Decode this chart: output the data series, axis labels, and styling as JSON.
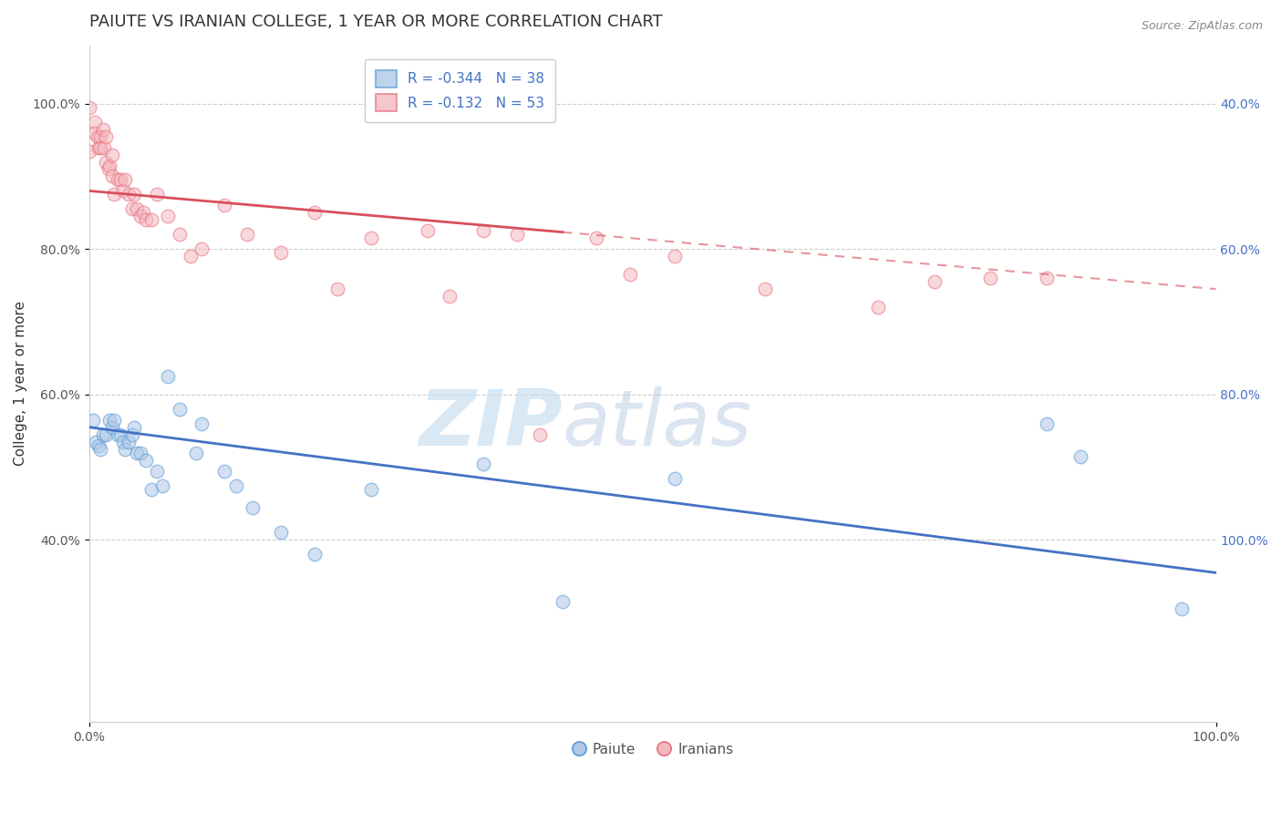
{
  "title": "PAIUTE VS IRANIAN COLLEGE, 1 YEAR OR MORE CORRELATION CHART",
  "source_text": "Source: ZipAtlas.com",
  "xlabel": "",
  "ylabel": "College, 1 year or more",
  "xlim": [
    0.0,
    1.0
  ],
  "ylim": [
    0.15,
    1.08
  ],
  "ytick_labels": [
    "40.0%",
    "60.0%",
    "80.0%",
    "100.0%"
  ],
  "ytick_values": [
    0.4,
    0.6,
    0.8,
    1.0
  ],
  "ytick_right_labels": [
    "100.0%",
    "80.0%",
    "60.0%",
    "40.0%"
  ],
  "xtick_labels": [
    "0.0%",
    "100.0%"
  ],
  "xtick_values": [
    0.0,
    1.0
  ],
  "legend_r_blue": "R = -0.344",
  "legend_n_blue": "N = 38",
  "legend_r_pink": "R = -0.132",
  "legend_n_pink": "N = 53",
  "legend_label_blue": "Paiute",
  "legend_label_pink": "Iranians",
  "blue_color": "#aec8e8",
  "pink_color": "#f4b8c1",
  "blue_edge_color": "#5b9bd5",
  "pink_edge_color": "#e8707a",
  "blue_line_color": "#4472c4",
  "pink_line_color": "#d94f5c",
  "watermark_zip": "ZIP",
  "watermark_atlas": "atlas",
  "blue_x": [
    0.003,
    0.006,
    0.008,
    0.01,
    0.012,
    0.015,
    0.018,
    0.02,
    0.022,
    0.025,
    0.028,
    0.03,
    0.032,
    0.035,
    0.038,
    0.04,
    0.042,
    0.045,
    0.05,
    0.055,
    0.06,
    0.065,
    0.07,
    0.08,
    0.095,
    0.1,
    0.12,
    0.13,
    0.145,
    0.17,
    0.2,
    0.25,
    0.35,
    0.42,
    0.52,
    0.85,
    0.88,
    0.97
  ],
  "blue_y": [
    0.565,
    0.535,
    0.53,
    0.525,
    0.545,
    0.545,
    0.565,
    0.555,
    0.565,
    0.545,
    0.545,
    0.535,
    0.525,
    0.535,
    0.545,
    0.555,
    0.52,
    0.52,
    0.51,
    0.47,
    0.495,
    0.475,
    0.625,
    0.58,
    0.52,
    0.56,
    0.495,
    0.475,
    0.445,
    0.41,
    0.38,
    0.47,
    0.505,
    0.315,
    0.485,
    0.56,
    0.515,
    0.305
  ],
  "pink_x": [
    0.0,
    0.0,
    0.005,
    0.005,
    0.007,
    0.008,
    0.01,
    0.01,
    0.012,
    0.013,
    0.015,
    0.015,
    0.017,
    0.018,
    0.02,
    0.02,
    0.022,
    0.025,
    0.028,
    0.03,
    0.032,
    0.035,
    0.038,
    0.04,
    0.042,
    0.045,
    0.048,
    0.05,
    0.055,
    0.06,
    0.07,
    0.08,
    0.09,
    0.1,
    0.12,
    0.14,
    0.17,
    0.2,
    0.22,
    0.25,
    0.3,
    0.32,
    0.35,
    0.38,
    0.4,
    0.45,
    0.48,
    0.52,
    0.6,
    0.7,
    0.75,
    0.8,
    0.85
  ],
  "pink_y": [
    0.995,
    0.935,
    0.975,
    0.96,
    0.955,
    0.94,
    0.955,
    0.94,
    0.965,
    0.94,
    0.955,
    0.92,
    0.91,
    0.915,
    0.93,
    0.9,
    0.875,
    0.895,
    0.895,
    0.88,
    0.895,
    0.875,
    0.855,
    0.875,
    0.855,
    0.845,
    0.85,
    0.84,
    0.84,
    0.875,
    0.845,
    0.82,
    0.79,
    0.8,
    0.86,
    0.82,
    0.795,
    0.85,
    0.745,
    0.815,
    0.825,
    0.735,
    0.825,
    0.82,
    0.545,
    0.815,
    0.765,
    0.79,
    0.745,
    0.72,
    0.755,
    0.76,
    0.76
  ],
  "blue_trend_x_start": 0.0,
  "blue_trend_x_end": 1.0,
  "blue_trend_y_start": 0.555,
  "blue_trend_y_end": 0.355,
  "pink_trend_solid_x_end": 0.42,
  "pink_trend_x_start": 0.0,
  "pink_trend_x_end": 1.0,
  "pink_trend_y_start": 0.88,
  "pink_trend_y_end": 0.745,
  "background_color": "#ffffff",
  "grid_color": "#c8c8c8",
  "title_fontsize": 13,
  "axis_label_fontsize": 11,
  "tick_fontsize": 10,
  "dot_size": 110,
  "dot_alpha": 0.55,
  "dot_linewidth": 1.0
}
